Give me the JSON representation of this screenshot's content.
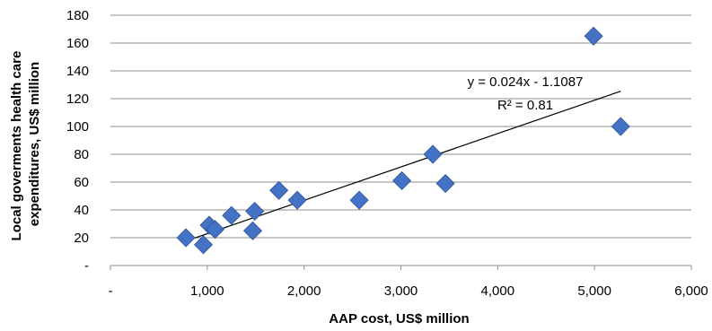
{
  "chart_data": {
    "type": "scatter",
    "xlabel": "AAP cost, US$ million",
    "ylabel": "Local goverments health care expenditures, US$ million",
    "xlim": [
      0,
      6000
    ],
    "ylim": [
      0,
      180
    ],
    "x_ticks": [
      0,
      1000,
      2000,
      3000,
      4000,
      5000,
      6000
    ],
    "x_tick_labels": [
      "-",
      "1,000",
      "2,000",
      "3,000",
      "4,000",
      "5,000",
      "6,000"
    ],
    "y_ticks": [
      0,
      20,
      40,
      60,
      80,
      100,
      120,
      140,
      160,
      180
    ],
    "y_tick_labels": [
      "-",
      "20",
      "40",
      "60",
      "80",
      "100",
      "120",
      "140",
      "160",
      "180"
    ],
    "grid": "horizontal",
    "marker": "diamond",
    "marker_color": "#4472C4",
    "points": [
      {
        "x": 780,
        "y": 20
      },
      {
        "x": 960,
        "y": 15
      },
      {
        "x": 1020,
        "y": 29
      },
      {
        "x": 1080,
        "y": 26
      },
      {
        "x": 1250,
        "y": 36
      },
      {
        "x": 1470,
        "y": 25
      },
      {
        "x": 1490,
        "y": 39
      },
      {
        "x": 1740,
        "y": 54
      },
      {
        "x": 1930,
        "y": 47
      },
      {
        "x": 2570,
        "y": 47
      },
      {
        "x": 3010,
        "y": 61
      },
      {
        "x": 3330,
        "y": 80
      },
      {
        "x": 3460,
        "y": 59
      },
      {
        "x": 4990,
        "y": 165
      },
      {
        "x": 5270,
        "y": 100
      }
    ],
    "trendline": {
      "type": "linear",
      "slope": 0.024,
      "intercept": -1.1087,
      "x_range": [
        780,
        5270
      ],
      "equation_label": "y = 0.024x - 1.1087",
      "r2_label": "R² = 0.81"
    }
  }
}
